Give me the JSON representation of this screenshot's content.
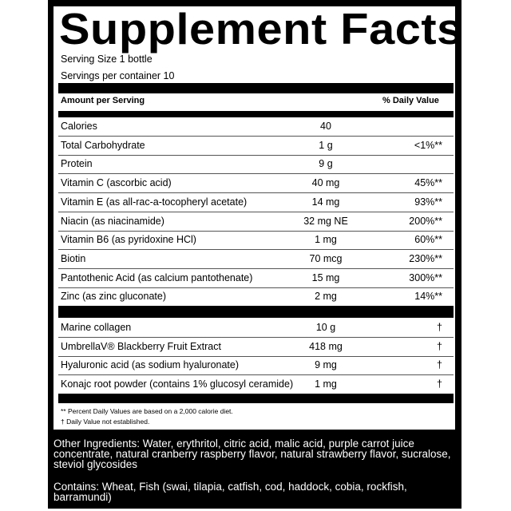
{
  "title": "Supplement Facts",
  "serving_size": "Serving Size 1 bottle",
  "servings_per_container": "Servings per container 10",
  "header": {
    "amount": "Amount per Serving",
    "dv": "% Daily Value"
  },
  "nutrients": [
    {
      "name": "Calories",
      "amount": "40",
      "dv": ""
    },
    {
      "name": "Total Carbohydrate",
      "amount": "1 g",
      "dv": "<1%**"
    },
    {
      "name": "Protein",
      "amount": "9 g",
      "dv": ""
    },
    {
      "name": "Vitamin C (ascorbic acid)",
      "amount": "40 mg",
      "dv": "45%**"
    },
    {
      "name": "Vitamin E (as all-rac-a-tocopheryl acetate)",
      "amount": "14 mg",
      "dv": "93%**"
    },
    {
      "name": "Niacin (as niacinamide)",
      "amount": "32 mg NE",
      "dv": "200%**"
    },
    {
      "name": "Vitamin B6 (as pyridoxine HCl)",
      "amount": "1 mg",
      "dv": "60%**"
    },
    {
      "name": "Biotin",
      "amount": "70 mcg",
      "dv": "230%**"
    },
    {
      "name": "Pantothenic Acid (as calcium pantothenate)",
      "amount": "15 mg",
      "dv": "300%**"
    },
    {
      "name": "Zinc (as zinc gluconate)",
      "amount": "2 mg",
      "dv": "14%**"
    }
  ],
  "other": [
    {
      "name": "UmbrellaV® Blackberry Fruit Extract",
      "amount": "418 mg",
      "dv": "†"
    },
    {
      "name": "Hyaluronic acid (as sodium hyaluronate)",
      "amount": "9 mg",
      "dv": "†"
    },
    {
      "name": "Konajc root powder (contains 1% glucosyl ceramide)",
      "amount": "1 mg",
      "dv": "†"
    }
  ],
  "marine": {
    "name": "Marine collagen",
    "amount": "10 g",
    "dv": "†"
  },
  "footnotes": [
    "** Percent Daily Values are based on a 2,000 calorie diet.",
    "† Daily Value not established."
  ],
  "other_ingredients": "Other Ingredients: Water, erythritol, citric acid, malic acid, purple carrot juice concentrate, natural cranberry raspberry flavor, natural strawberry flavor, sucralose, steviol glycosides",
  "contains": "Contains: Wheat, Fish (swai, tilapia, catfish, cod, haddock, cobia, rockfish, barramundi)"
}
